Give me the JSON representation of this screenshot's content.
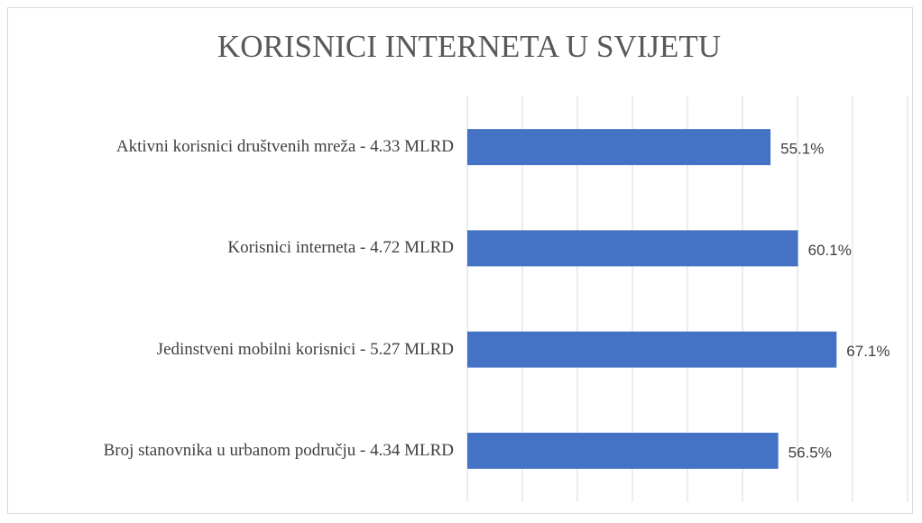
{
  "chart_data": {
    "type": "hbar",
    "title": "KORISNICI INTERNETA U SVIJETU",
    "categories": [
      "Aktivni korisnici društvenih mreža - 4.33 MLRD",
      "Korisnici interneta - 4.72 MLRD",
      "Jedinstveni mobilni korisnici - 5.27 MLRD",
      "Broj stanovnika u urbanom području - 4.34 MLRD"
    ],
    "values": [
      55.1,
      60.1,
      67.1,
      56.5
    ],
    "value_labels": [
      "55.1%",
      "60.1%",
      "67.1%",
      "56.5%"
    ],
    "color": "#4472c4",
    "xlim": [
      0,
      80
    ],
    "xticks": [
      0,
      10,
      20,
      30,
      40,
      50,
      60,
      70,
      80
    ],
    "grid": true
  }
}
